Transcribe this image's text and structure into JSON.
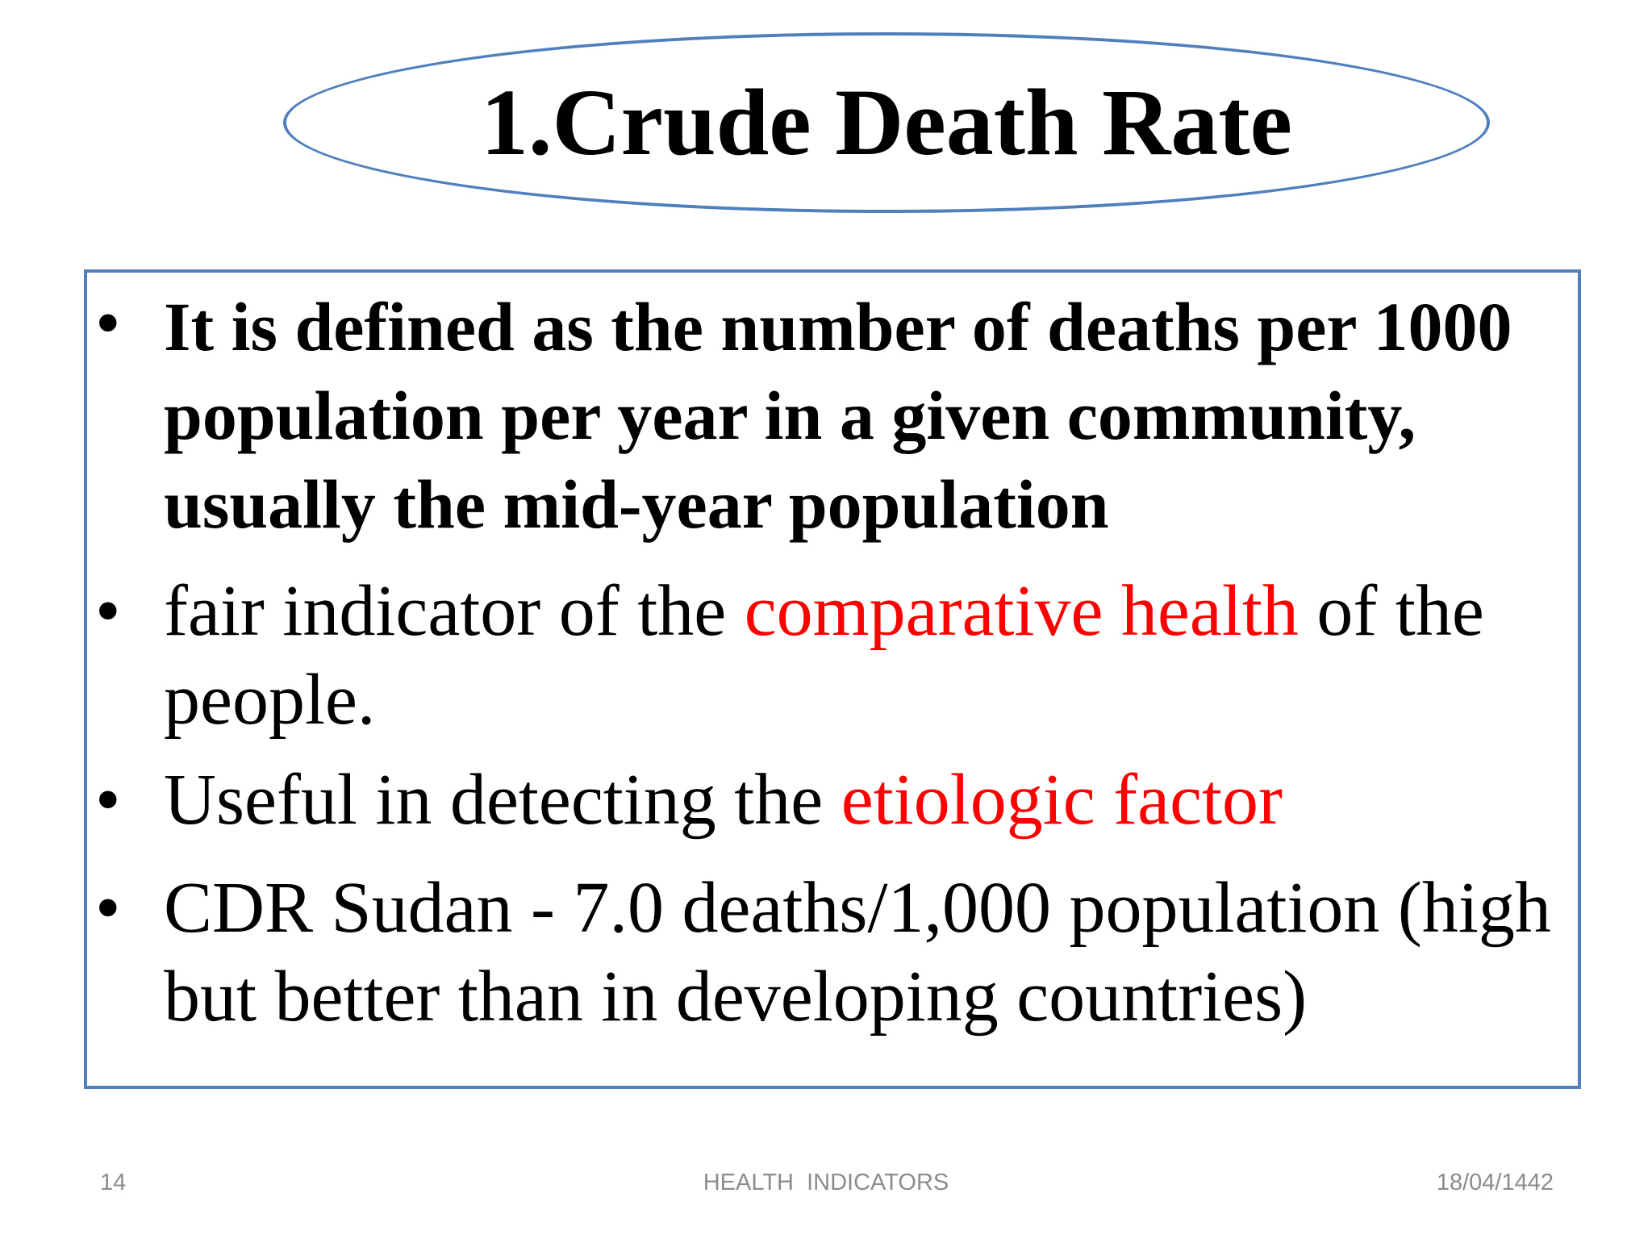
{
  "slide": {
    "title": "1.Crude Death Rate",
    "bullets": [
      {
        "marker": "•",
        "text": "It is defined as the number of deaths per 1000 population per year in a given community, usually the mid-year population"
      },
      {
        "marker": "•",
        "parts": [
          "fair indicator of the ",
          "comparative health",
          " of the people."
        ]
      },
      {
        "marker": "•",
        "parts": [
          "Useful in detecting the ",
          "etiologic factor"
        ]
      },
      {
        "marker": "•",
        "text": "CDR Sudan - 7.0 deaths/1,000 population (high but better than in developing countries)"
      }
    ],
    "highlight_color": "#ff0000",
    "border_color": "#4f7fbd"
  },
  "footer": {
    "slide_number": "14",
    "center_text": "HEALTH  INDICATORS",
    "date": "18/04/1442"
  }
}
